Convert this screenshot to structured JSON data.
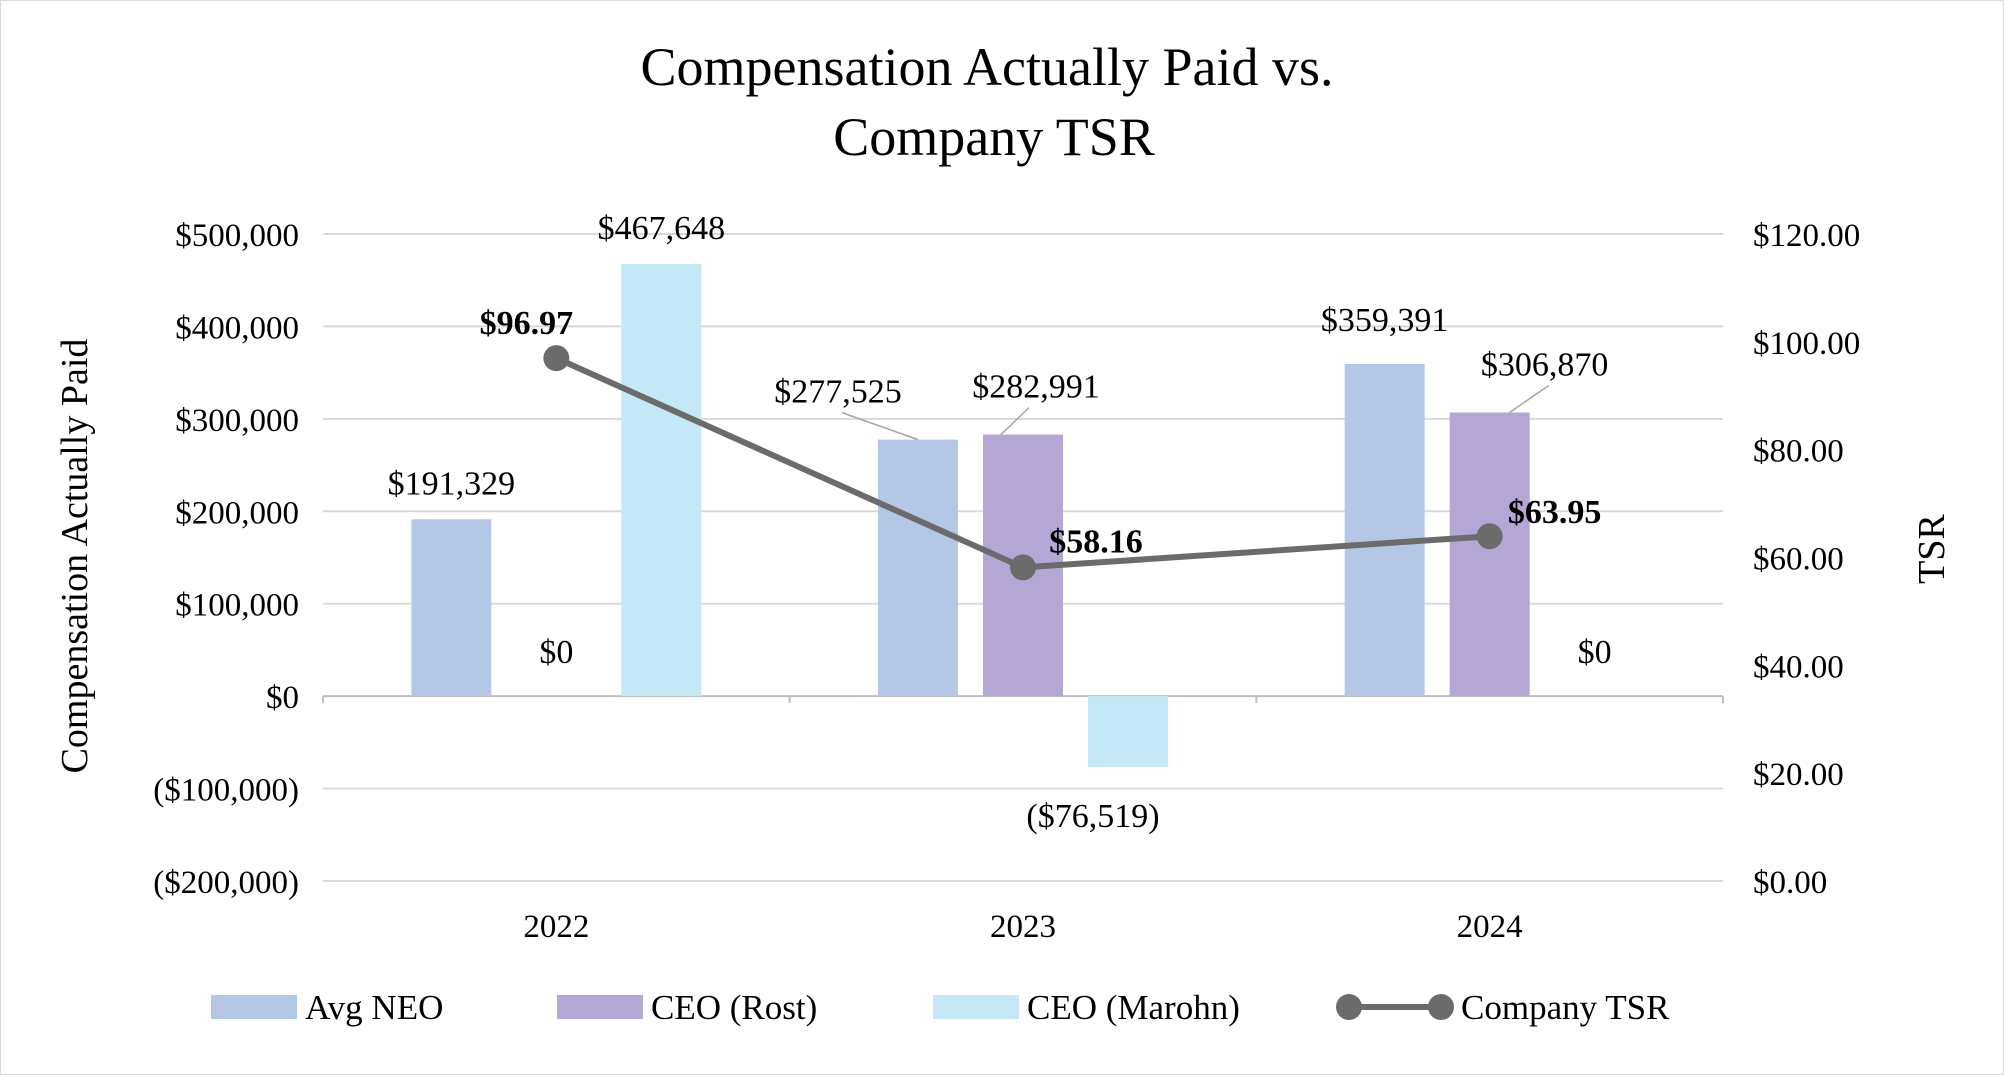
{
  "chart_data": {
    "type": "bar",
    "title_lines": [
      "Compensation Actually Paid vs.",
      "Company TSR"
    ],
    "ylabel": "Compensation Actually Paid",
    "y2label": "TSR",
    "categories": [
      "2022",
      "2023",
      "2024"
    ],
    "ylim": [
      -200000,
      500000
    ],
    "y2lim": [
      0,
      120
    ],
    "yticks": [
      500000,
      400000,
      300000,
      200000,
      100000,
      0,
      -100000,
      -200000
    ],
    "ytick_labels": [
      "$500,000",
      "$400,000",
      "$300,000",
      "$200,000",
      "$100,000",
      "$0",
      "($100,000)",
      "($200,000)"
    ],
    "y2ticks": [
      120,
      100,
      80,
      60,
      40,
      20,
      0
    ],
    "y2tick_labels": [
      "$120.00",
      "$100.00",
      "$80.00",
      "$60.00",
      "$40.00",
      "$20.00",
      "$0.00"
    ],
    "series": [
      {
        "name": "Avg NEO",
        "kind": "bar",
        "axis": "left",
        "color": "#b4c7e7",
        "values": [
          191329,
          277525,
          359391
        ],
        "labels": [
          "$191,329",
          "$277,525",
          "$359,391"
        ]
      },
      {
        "name": "CEO (Rost)",
        "kind": "bar",
        "axis": "left",
        "color": "#b4a7d6",
        "values": [
          0,
          282991,
          306870
        ],
        "labels": [
          "$0",
          "$282,991",
          "$306,870"
        ]
      },
      {
        "name": "CEO (Marohn)",
        "kind": "bar",
        "axis": "left",
        "color": "#c5e8f7",
        "values": [
          467648,
          -76519,
          0
        ],
        "labels": [
          "$467,648",
          "($76,519)",
          "$0"
        ]
      },
      {
        "name": "Company TSR",
        "kind": "line",
        "axis": "right",
        "color": "#6b6b6b",
        "values": [
          96.97,
          58.16,
          63.95
        ],
        "labels": [
          "$96.97",
          "$58.16",
          "$63.95"
        ]
      }
    ],
    "legend": {
      "position": "bottom"
    },
    "grid": true
  }
}
